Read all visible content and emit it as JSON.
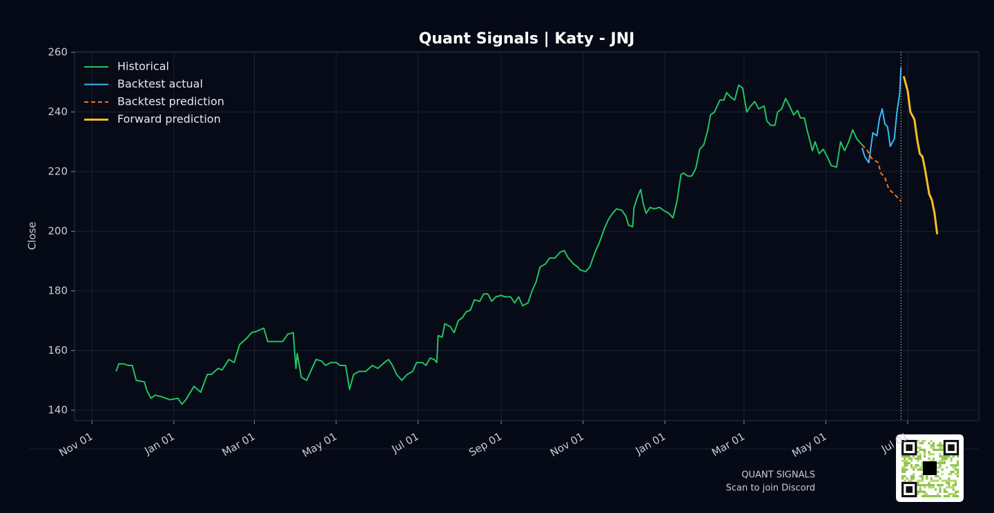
{
  "chart_data": {
    "type": "line",
    "title": "Quant Signals | Katy - JNJ",
    "ylabel": "Close",
    "xlim": [
      -13,
      661
    ],
    "ylim": [
      136.5,
      260.2
    ],
    "xticks": [
      {
        "value": 0,
        "label": "Nov 01"
      },
      {
        "value": 61,
        "label": "Jan 01"
      },
      {
        "value": 121,
        "label": "Mar 01"
      },
      {
        "value": 182,
        "label": "May 01"
      },
      {
        "value": 243,
        "label": "Jul 01"
      },
      {
        "value": 305,
        "label": "Sep 01"
      },
      {
        "value": 366,
        "label": "Nov 01"
      },
      {
        "value": 427,
        "label": "Jan 01"
      },
      {
        "value": 486,
        "label": "Mar 01"
      },
      {
        "value": 547,
        "label": "May 01"
      },
      {
        "value": 608,
        "label": "Jul 01"
      }
    ],
    "yticks": [
      140,
      160,
      180,
      200,
      220,
      240,
      260
    ],
    "grid": true,
    "legend": "upper left",
    "series": [
      {
        "name": "Historical",
        "color": "#22c55e",
        "x": [
          18,
          20,
          24,
          27,
          30,
          33,
          39,
          41,
          44,
          47,
          52,
          58,
          64,
          67,
          70,
          76,
          81,
          86,
          89,
          94,
          97,
          102,
          106,
          110,
          115,
          119,
          123,
          128,
          131,
          136,
          142,
          146,
          150,
          152,
          153,
          156,
          160,
          164,
          167,
          171,
          174,
          178,
          182,
          185,
          189,
          192,
          195,
          199,
          204,
          209,
          213,
          218,
          221,
          224,
          227,
          231,
          235,
          239,
          242,
          246,
          249,
          252,
          255,
          257,
          258,
          261,
          263,
          267,
          270,
          273,
          276,
          279,
          282,
          285,
          289,
          292,
          295,
          298,
          301,
          305,
          308,
          312,
          315,
          318,
          321,
          325,
          328,
          331,
          334,
          338,
          341,
          345,
          349,
          352,
          355,
          359,
          362,
          364,
          368,
          371,
          375,
          378,
          382,
          385,
          388,
          391,
          395,
          398,
          400,
          403,
          404,
          407,
          409,
          411,
          413,
          416,
          419,
          423,
          426,
          430,
          433,
          436,
          439,
          441,
          444,
          447,
          450,
          453,
          456,
          459,
          461,
          464,
          468,
          471,
          473,
          476,
          479,
          482,
          485,
          488,
          491,
          494,
          497,
          501,
          503,
          506,
          509,
          511,
          514,
          517,
          520,
          523,
          526,
          528,
          531,
          533,
          537,
          539,
          542,
          545,
          548,
          551,
          555,
          558,
          561,
          564,
          567,
          570,
          574
        ],
        "values": [
          153,
          155.5,
          155.5,
          155,
          155,
          150,
          149.5,
          146.5,
          144,
          145,
          144.5,
          143.5,
          144,
          142,
          143.5,
          148,
          146,
          152,
          152,
          154,
          153.5,
          157,
          156,
          162,
          164,
          166,
          166.5,
          167.5,
          163,
          163,
          163,
          165.5,
          166,
          154,
          159,
          151,
          150,
          154,
          157,
          156.5,
          155,
          156,
          156,
          155,
          155,
          147,
          152,
          153,
          153,
          155,
          154,
          156,
          157,
          155,
          152,
          150,
          152,
          153,
          156,
          156,
          155,
          157.5,
          157,
          156,
          165,
          164.5,
          169,
          168,
          166,
          170,
          171,
          173,
          173.5,
          177,
          176.5,
          179,
          179,
          176.5,
          178,
          178.5,
          178,
          178,
          176,
          178,
          175,
          176,
          180,
          183,
          188,
          189,
          191,
          191,
          193,
          193.5,
          191,
          189,
          188,
          187,
          186.5,
          188,
          193,
          196,
          201,
          204,
          206,
          207.5,
          207,
          205,
          202,
          201.5,
          208,
          212,
          214,
          209,
          206,
          208,
          207.5,
          208,
          207,
          206,
          204.5,
          210,
          219,
          219.5,
          218.5,
          218.5,
          221,
          227.5,
          229,
          234,
          239,
          240,
          244,
          244,
          246.5,
          245,
          244,
          249,
          248,
          240,
          242,
          243.5,
          241,
          242,
          237,
          235.5,
          235.5,
          240,
          241,
          244.5,
          242,
          239,
          240.5,
          238,
          238,
          234,
          227,
          230,
          226,
          227.5,
          225,
          222,
          221.5,
          230,
          227,
          230,
          234,
          231,
          229
        ]
      },
      {
        "name": "Backtest actual",
        "color": "#38bdf8",
        "x": [
          574,
          576,
          579,
          582,
          585,
          587,
          589,
          591,
          593,
          595,
          598,
          600,
          602,
          603
        ],
        "values": [
          228,
          225,
          223,
          233,
          232,
          238,
          241,
          236,
          235,
          228.5,
          231,
          240,
          246,
          255
        ]
      },
      {
        "name": "Backtest prediction",
        "color": "#f97316",
        "linestyle": "dashed",
        "x": [
          574,
          578,
          581,
          586,
          588,
          591,
          594,
          598,
          601,
          603
        ],
        "values": [
          229,
          227,
          224.5,
          223,
          219.5,
          218,
          214,
          212.5,
          211,
          210
        ]
      },
      {
        "name": "Forward prediction",
        "color": "#fbbf24",
        "x": [
          605,
          608,
          610,
          613,
          615,
          617,
          619,
          621,
          624,
          626,
          628,
          630
        ],
        "values": [
          252,
          247,
          240,
          237.5,
          231,
          226,
          225,
          220.5,
          212.5,
          210.5,
          206,
          199
        ]
      }
    ]
  },
  "footer": {
    "brand": "QUANT SIGNALS",
    "caption": "Scan to join Discord"
  }
}
